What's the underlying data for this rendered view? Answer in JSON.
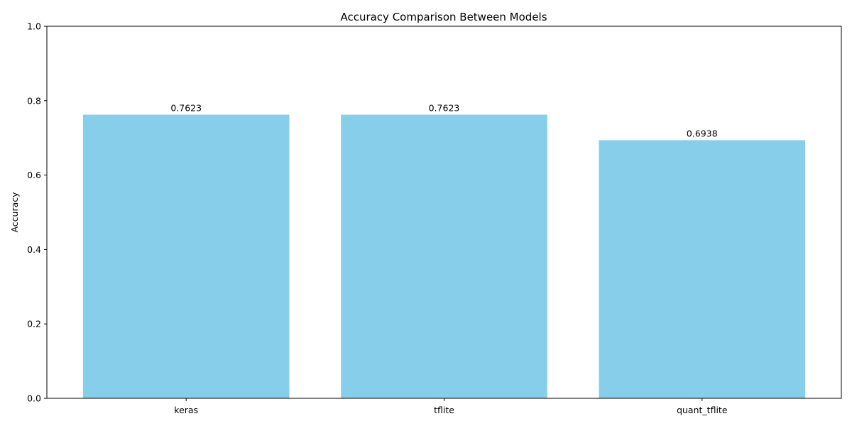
{
  "chart_data": {
    "type": "bar",
    "title": "Accuracy Comparison Between Models",
    "xlabel": "",
    "ylabel": "Accuracy",
    "categories": [
      "keras",
      "tflite",
      "quant_tflite"
    ],
    "values": [
      0.7623,
      0.7623,
      0.6938
    ],
    "value_labels": [
      "0.7623",
      "0.7623",
      "0.6938"
    ],
    "ylim": [
      0,
      1.0
    ],
    "yticks": [
      0.0,
      0.2,
      0.4,
      0.6,
      0.8,
      1.0
    ],
    "ytick_labels": [
      "0.0",
      "0.2",
      "0.4",
      "0.6",
      "0.8",
      "1.0"
    ],
    "grid": false,
    "bar_color": "#87ceeb"
  }
}
